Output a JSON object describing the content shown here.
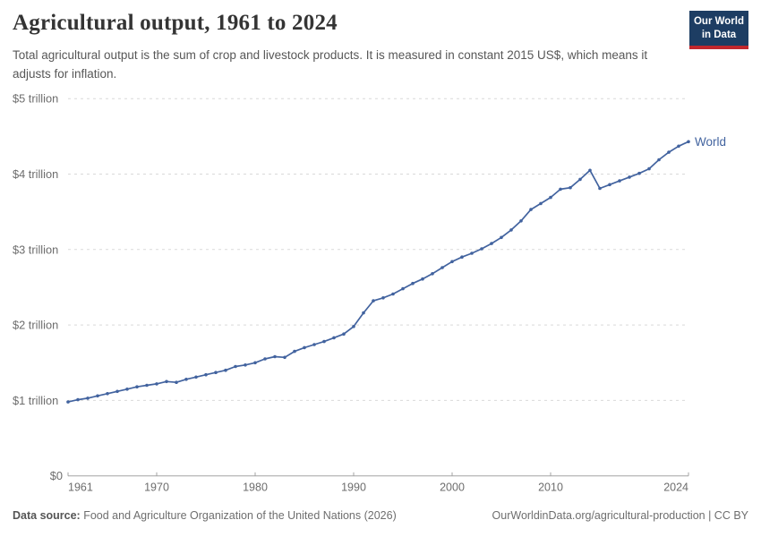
{
  "header": {
    "title": "Agricultural output, 1961 to 2024",
    "subtitle": "Total agricultural output is the sum of crop and livestock products. It is measured in constant 2015 US$, which means it adjusts for inflation.",
    "logo": {
      "line1": "Our World",
      "line2": "in Data",
      "bg_color": "#1d3d63",
      "stripe_color": "#c1272d"
    }
  },
  "chart_data": {
    "type": "line",
    "title": "Agricultural output, 1961 to 2024",
    "unit": "constant 2015 US$",
    "xlabel": "",
    "ylabel": "",
    "xlim": [
      1961,
      2024
    ],
    "ylim": [
      0,
      5
    ],
    "grid": "horizontal-dashed",
    "legend_position": "end-of-line",
    "x_ticks": [
      1961,
      1970,
      1980,
      1990,
      2000,
      2010,
      2024
    ],
    "y_ticks": [
      {
        "value": 5,
        "label": "$5 trillion"
      },
      {
        "value": 4,
        "label": "$4 trillion"
      },
      {
        "value": 3,
        "label": "$3 trillion"
      },
      {
        "value": 2,
        "label": "$2 trillion"
      },
      {
        "value": 1,
        "label": "$1 trillion"
      },
      {
        "value": 0,
        "label": "$0"
      }
    ],
    "series": [
      {
        "name": "World",
        "color": "#42639f",
        "x": [
          1961,
          1962,
          1963,
          1964,
          1965,
          1966,
          1967,
          1968,
          1969,
          1970,
          1971,
          1972,
          1973,
          1974,
          1975,
          1976,
          1977,
          1978,
          1979,
          1980,
          1981,
          1982,
          1983,
          1984,
          1985,
          1986,
          1987,
          1988,
          1989,
          1990,
          1991,
          1992,
          1993,
          1994,
          1995,
          1996,
          1997,
          1998,
          1999,
          2000,
          2001,
          2002,
          2003,
          2004,
          2005,
          2006,
          2007,
          2008,
          2009,
          2010,
          2011,
          2012,
          2013,
          2014,
          2015,
          2016,
          2017,
          2018,
          2019,
          2020,
          2021,
          2022,
          2023,
          2024
        ],
        "values": [
          0.98,
          1.01,
          1.03,
          1.06,
          1.09,
          1.12,
          1.15,
          1.18,
          1.2,
          1.22,
          1.25,
          1.24,
          1.28,
          1.31,
          1.34,
          1.37,
          1.4,
          1.45,
          1.47,
          1.5,
          1.55,
          1.58,
          1.57,
          1.65,
          1.7,
          1.74,
          1.78,
          1.83,
          1.88,
          1.98,
          2.16,
          2.32,
          2.36,
          2.41,
          2.48,
          2.55,
          2.61,
          2.68,
          2.76,
          2.84,
          2.9,
          2.95,
          3.01,
          3.08,
          3.16,
          3.26,
          3.38,
          3.53,
          3.61,
          3.69,
          3.8,
          3.82,
          3.93,
          4.05,
          3.81,
          3.86,
          3.91,
          3.96,
          4.01,
          4.07,
          4.19,
          4.29,
          4.37,
          4.43
        ],
        "values_unit": "trillion US$ (constant 2015)"
      }
    ],
    "colors": {
      "line": "#42639f",
      "gridline": "#d9d9d9",
      "axis_line": "#a3a3a3",
      "tick_label": "#6d6d6d"
    }
  },
  "footer": {
    "source_label": "Data source:",
    "source_text": "Food and Agriculture Organization of the United Nations (2026)",
    "link_text": "OurWorldinData.org/agricultural-production | CC BY"
  }
}
